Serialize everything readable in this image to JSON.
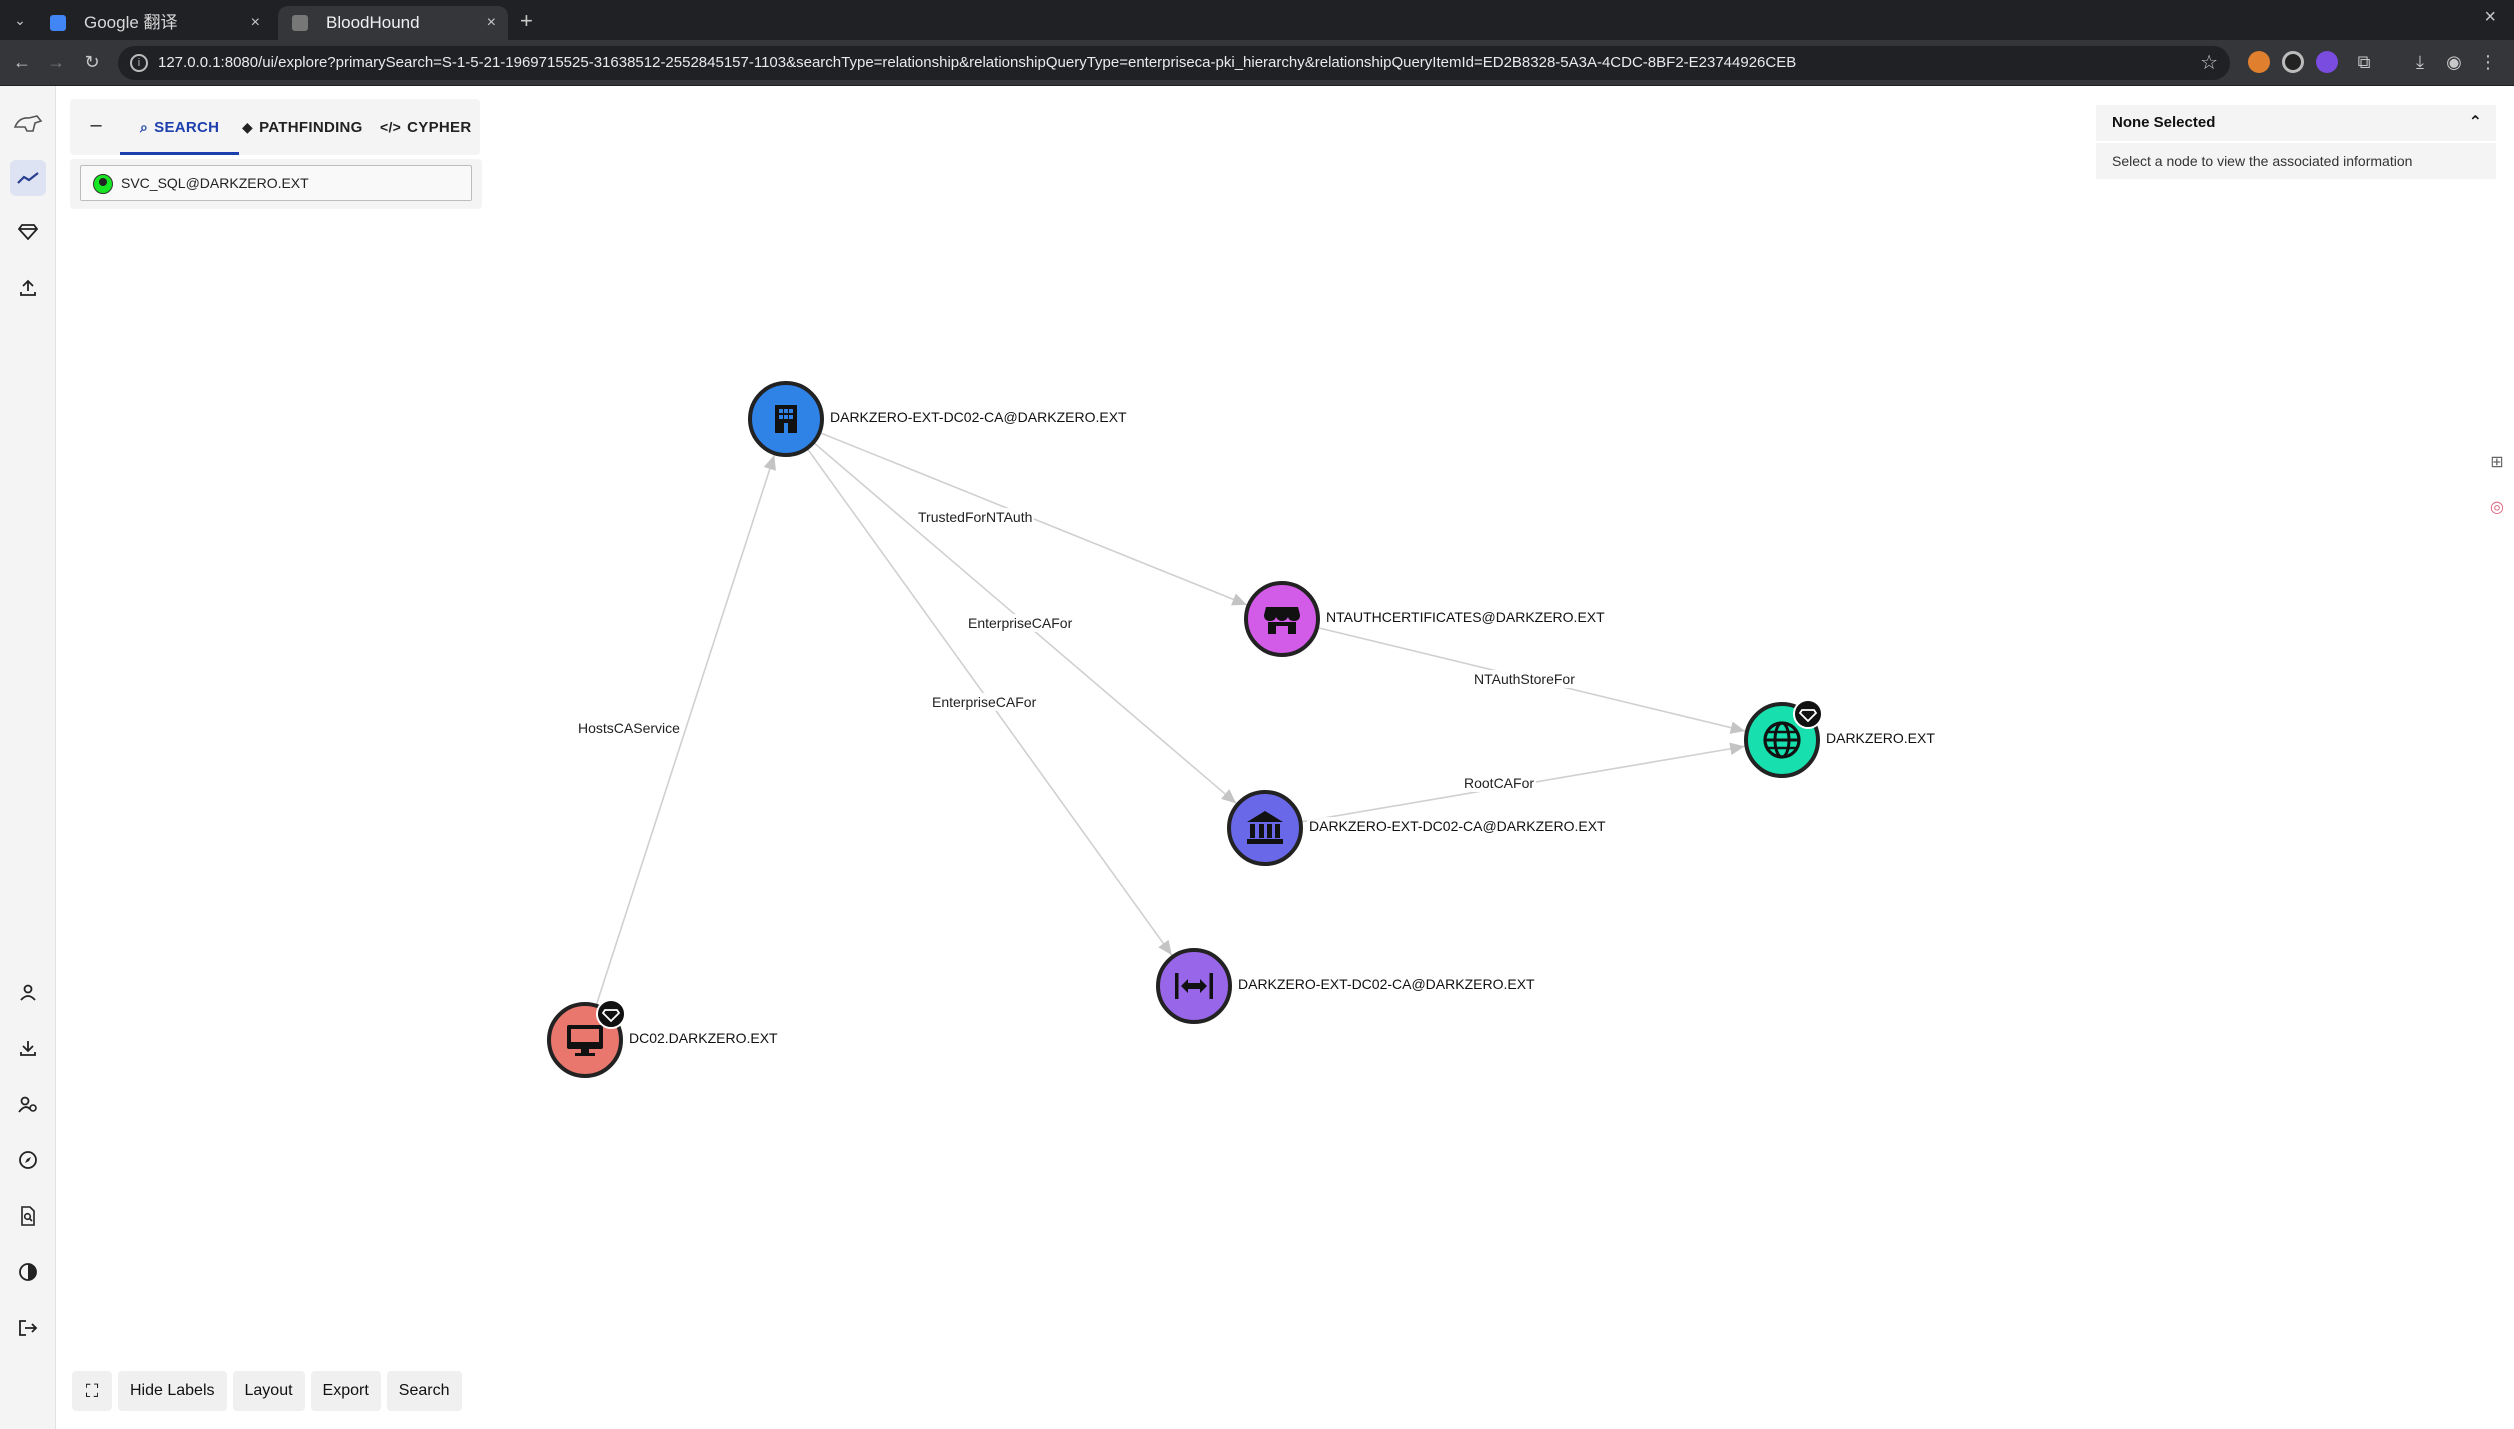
{
  "browser": {
    "tabs": [
      {
        "title": "Google 翻译",
        "favicon_color": "#4285f4"
      },
      {
        "title": "BloodHound",
        "favicon_color": "#888888"
      }
    ],
    "url": "127.0.0.1:8080/ui/explore?primarySearch=S-1-5-21-1969715525-31638512-2552845157-1103&searchType=relationship&relationshipQueryType=enterpriseca-pki_hierarchy&relationshipQueryItemId=ED2B8328-5A3A-4CDC-8BF2-E23744926CEB",
    "new_tab_symbol": "+",
    "close_symbol": "×"
  },
  "search": {
    "tabs": [
      {
        "label": "SEARCH",
        "icon": "search-icon"
      },
      {
        "label": "PATHFINDING",
        "icon": "pathfinding-icon"
      },
      {
        "label": "CYPHER",
        "icon": "code-icon"
      }
    ],
    "value": "SVC_SQL@DARKZERO.EXT"
  },
  "info": {
    "title": "None Selected",
    "message": "Select a node to view the associated information"
  },
  "graph": {
    "nodes": [
      {
        "id": "dc02ca",
        "label": "DARKZERO-EXT-DC02-CA@DARKZERO.EXT",
        "type": "EnterpriseCA",
        "color": "#2f83e6",
        "icon": "building-icon"
      },
      {
        "id": "ntauth",
        "label": "NTAUTHCERTIFICATES@DARKZERO.EXT",
        "type": "NTAuthStore",
        "color": "#d25be8",
        "icon": "store-icon"
      },
      {
        "id": "domain",
        "label": "DARKZERO.EXT",
        "type": "Domain",
        "color": "#17dfad",
        "icon": "globe-icon"
      },
      {
        "id": "rootca",
        "label": "DARKZERO-EXT-DC02-CA@DARKZERO.EXT",
        "type": "RootCA",
        "color": "#6968e8",
        "icon": "bank-icon"
      },
      {
        "id": "aiaca",
        "label": "DARKZERO-EXT-DC02-CA@DARKZERO.EXT",
        "type": "AIACA",
        "color": "#9866e8",
        "icon": "arrows-icon"
      },
      {
        "id": "dc02",
        "label": "DC02.DARKZERO.EXT",
        "type": "Computer",
        "color": "#e9776d",
        "icon": "monitor-icon"
      }
    ],
    "edges": [
      {
        "label": "TrustedForNTAuth"
      },
      {
        "label": "EnterpriseCAFor"
      },
      {
        "label": "EnterpriseCAFor"
      },
      {
        "label": "NTAuthStoreFor"
      },
      {
        "label": "RootCAFor"
      },
      {
        "label": "HostsCAService"
      }
    ]
  },
  "toolbar": {
    "hide_labels": "Hide Labels",
    "layout": "Layout",
    "export": "Export",
    "search": "Search"
  }
}
